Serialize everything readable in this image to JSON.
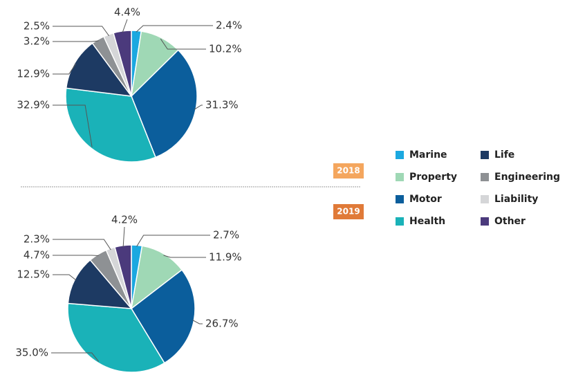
{
  "chart_data": [
    {
      "type": "pie",
      "title": "2018",
      "values": [
        2.4,
        10.2,
        31.3,
        32.9,
        12.9,
        3.2,
        2.5,
        4.4
      ],
      "value_labels": [
        "2.4%",
        "10.2%",
        "31.3%",
        "32.9%",
        "12.9%",
        "3.2%",
        "2.5%",
        "4.4%"
      ]
    },
    {
      "type": "pie",
      "title": "2019",
      "values": [
        2.7,
        11.9,
        26.7,
        35.0,
        12.5,
        4.7,
        2.3,
        4.2
      ],
      "value_labels": [
        "2.7%",
        "11.9%",
        "26.7%",
        "35.0%",
        "12.5%",
        "4.7%",
        "2.3%",
        "4.2%"
      ]
    }
  ],
  "legend": {
    "categories": [
      "Marine",
      "Property",
      "Motor",
      "Health",
      "Life",
      "Engineering",
      "Liability",
      "Other"
    ],
    "colors": [
      "#1ba8e0",
      "#9fd8b5",
      "#0b5e9c",
      "#1ab2b8",
      "#1d3a63",
      "#8e9194",
      "#d5d6d8",
      "#4b3a7c"
    ]
  }
}
